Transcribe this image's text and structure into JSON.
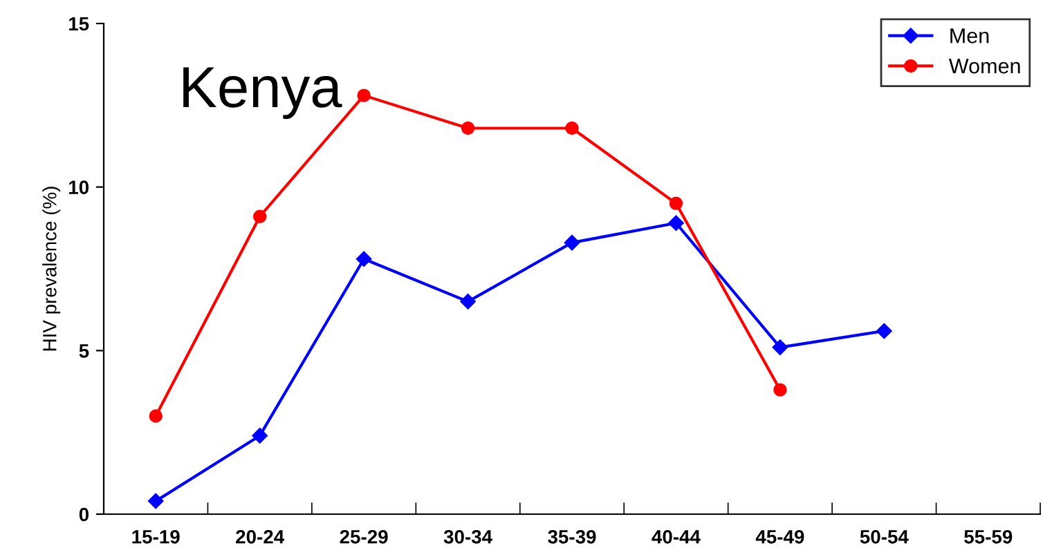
{
  "chart_data": {
    "type": "line",
    "title": "Kenya",
    "ylabel": "HIV prevalence (%)",
    "categories": [
      "15-19",
      "20-24",
      "25-29",
      "30-34",
      "35-39",
      "40-44",
      "45-49",
      "50-54",
      "55-59"
    ],
    "series": [
      {
        "name": "Men",
        "color": "#0000ff",
        "marker": "diamond",
        "values": [
          0.4,
          2.4,
          7.8,
          6.5,
          8.3,
          8.9,
          5.1,
          5.6,
          null
        ]
      },
      {
        "name": "Women",
        "color": "#ff0000",
        "marker": "circle",
        "values": [
          3.0,
          9.1,
          12.8,
          11.8,
          11.8,
          9.5,
          3.8,
          null,
          null
        ]
      }
    ],
    "ylim": [
      0,
      15
    ],
    "yticks": [
      0,
      5,
      10,
      15
    ],
    "grid": false,
    "legend": "top right",
    "line_style": "solid"
  }
}
